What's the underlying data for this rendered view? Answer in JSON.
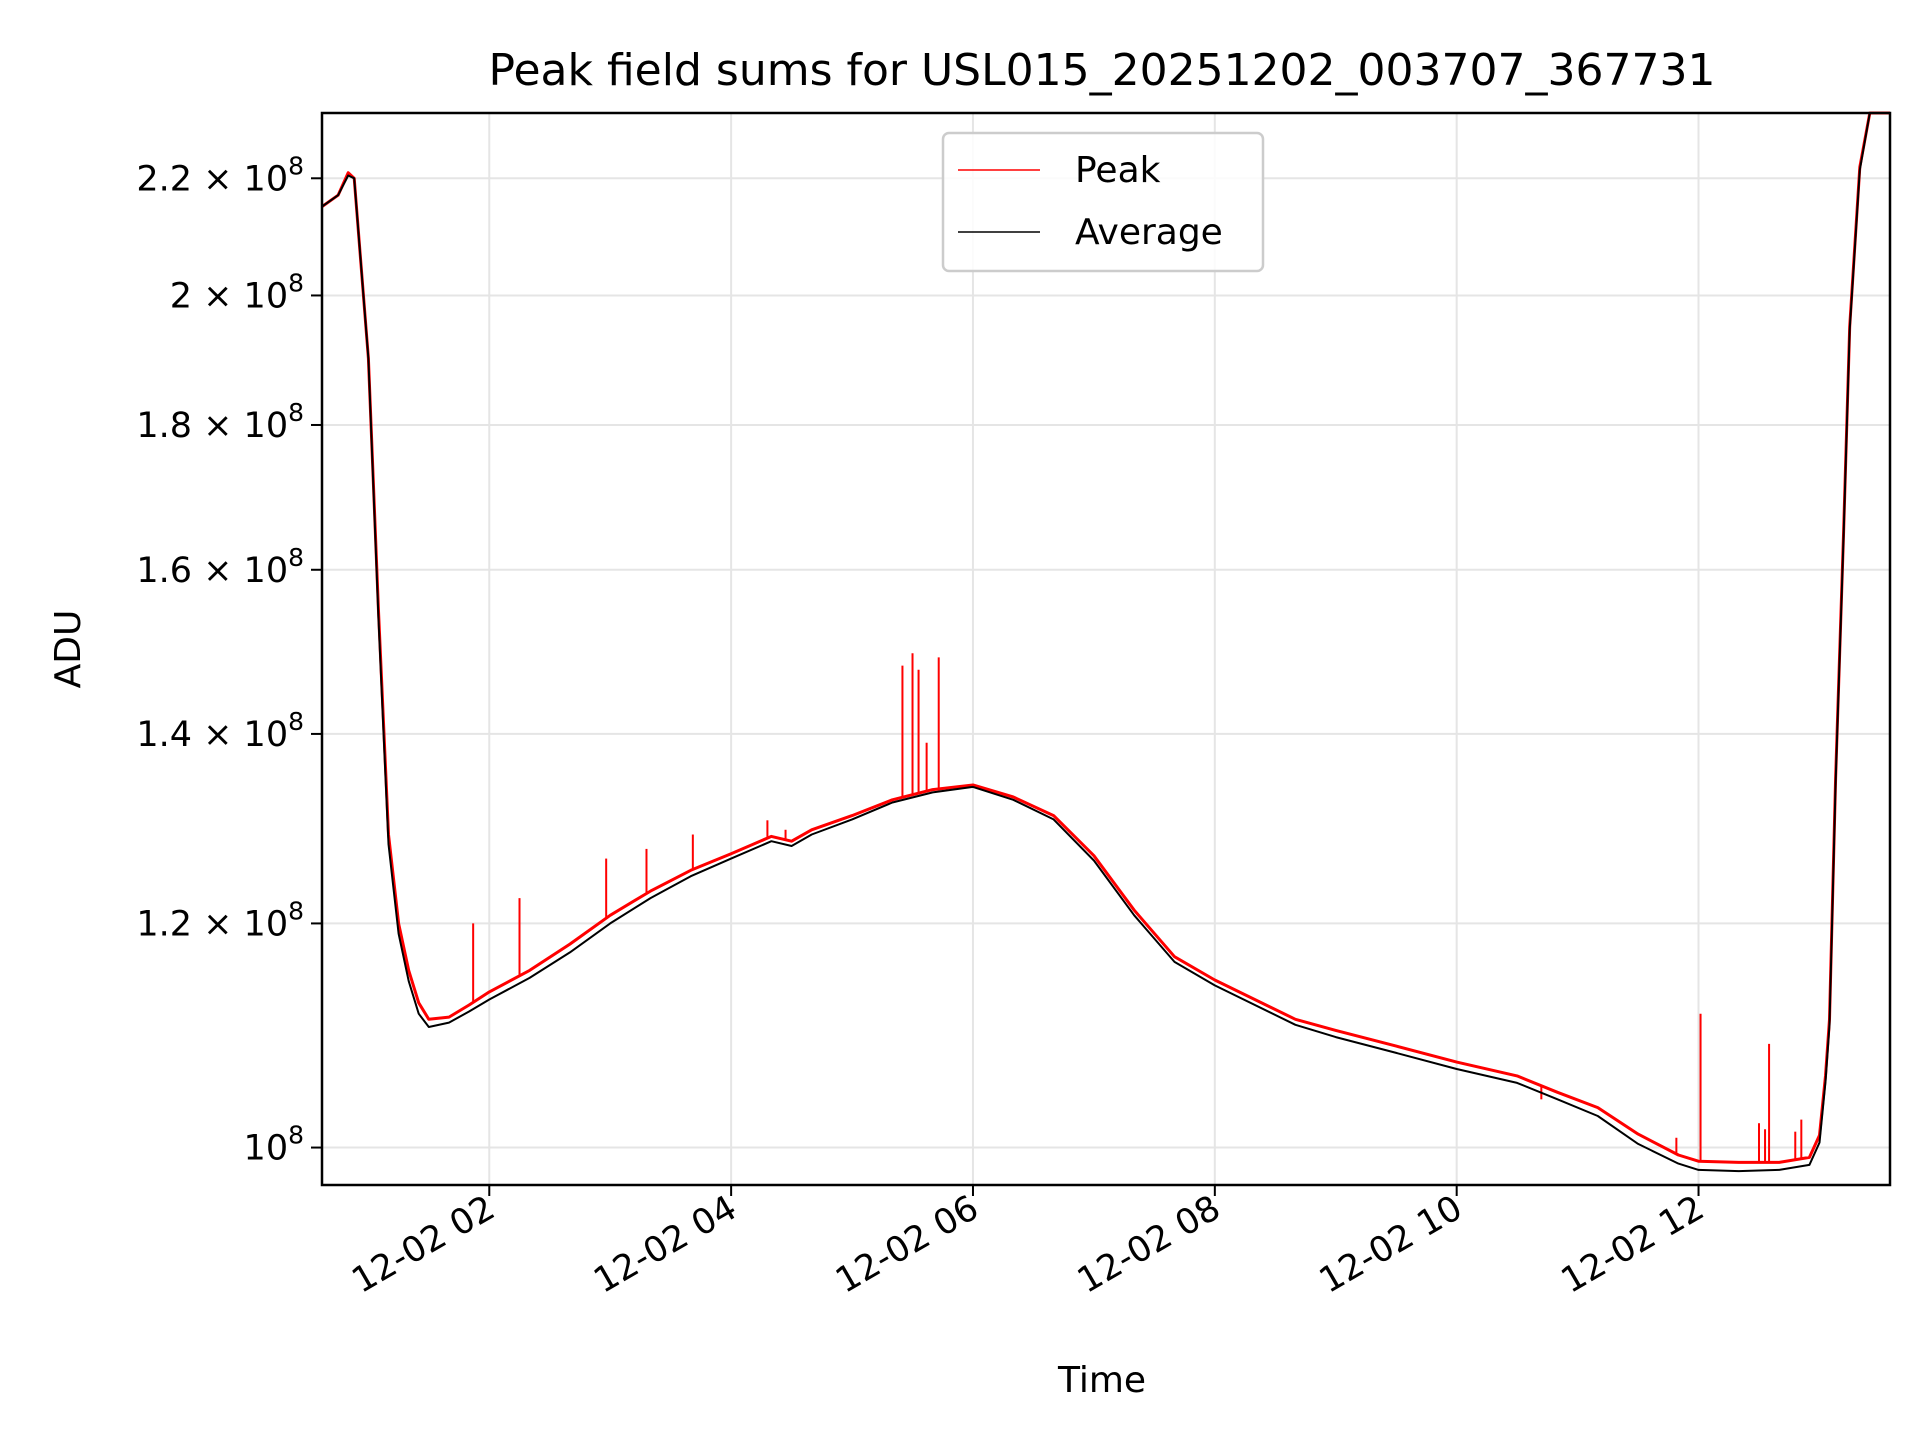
{
  "chart_data": {
    "type": "line",
    "title": "Peak field sums for USL015_20251202_003707_367731",
    "xlabel": "Time",
    "ylabel": "ADU",
    "y_scale": "log",
    "grid": true,
    "legend_position": "upper center",
    "xlim": [
      "2025-12-02 00:37",
      "2025-12-02 13:35"
    ],
    "ylim": [
      97000000,
      232000000
    ],
    "x_ticks": [
      {
        "value": "2025-12-02 02:00",
        "label": "12-02 02"
      },
      {
        "value": "2025-12-02 04:00",
        "label": "12-02 04"
      },
      {
        "value": "2025-12-02 06:00",
        "label": "12-02 06"
      },
      {
        "value": "2025-12-02 08:00",
        "label": "12-02 08"
      },
      {
        "value": "2025-12-02 10:00",
        "label": "12-02 10"
      },
      {
        "value": "2025-12-02 12:00",
        "label": "12-02 12"
      }
    ],
    "y_ticks": [
      {
        "value": 100000000,
        "mantissa": "",
        "times": "",
        "base": "10",
        "exp": "8"
      },
      {
        "value": 120000000,
        "mantissa": "1.2",
        "times": "×",
        "base": "10",
        "exp": "8"
      },
      {
        "value": 140000000,
        "mantissa": "1.4",
        "times": "×",
        "base": "10",
        "exp": "8"
      },
      {
        "value": 160000000,
        "mantissa": "1.6",
        "times": "×",
        "base": "10",
        "exp": "8"
      },
      {
        "value": 180000000,
        "mantissa": "1.8",
        "times": "×",
        "base": "10",
        "exp": "8"
      },
      {
        "value": 200000000,
        "mantissa": "2",
        "times": "×",
        "base": "10",
        "exp": "8"
      },
      {
        "value": 220000000,
        "mantissa": "2.2",
        "times": "×",
        "base": "10",
        "exp": "8"
      }
    ],
    "series": [
      {
        "name": "Peak",
        "color": "#ff0000",
        "x": [
          "2025-12-02 00:37",
          "2025-12-02 00:45",
          "2025-12-02 00:50",
          "2025-12-02 00:53",
          "2025-12-02 01:00",
          "2025-12-02 01:05",
          "2025-12-02 01:10",
          "2025-12-02 01:15",
          "2025-12-02 01:20",
          "2025-12-02 01:25",
          "2025-12-02 01:30",
          "2025-12-02 01:40",
          "2025-12-02 01:50",
          "2025-12-02 02:00",
          "2025-12-02 02:20",
          "2025-12-02 02:40",
          "2025-12-02 03:00",
          "2025-12-02 03:20",
          "2025-12-02 03:40",
          "2025-12-02 04:00",
          "2025-12-02 04:20",
          "2025-12-02 04:30",
          "2025-12-02 04:40",
          "2025-12-02 05:00",
          "2025-12-02 05:20",
          "2025-12-02 05:40",
          "2025-12-02 06:00",
          "2025-12-02 06:20",
          "2025-12-02 06:40",
          "2025-12-02 07:00",
          "2025-12-02 07:20",
          "2025-12-02 07:40",
          "2025-12-02 08:00",
          "2025-12-02 08:40",
          "2025-12-02 09:00",
          "2025-12-02 09:30",
          "2025-12-02 10:00",
          "2025-12-02 10:30",
          "2025-12-02 10:50",
          "2025-12-02 11:10",
          "2025-12-02 11:30",
          "2025-12-02 11:50",
          "2025-12-02 12:00",
          "2025-12-02 12:20",
          "2025-12-02 12:40",
          "2025-12-02 12:55",
          "2025-12-02 13:00",
          "2025-12-02 13:03",
          "2025-12-02 13:05",
          "2025-12-02 13:08",
          "2025-12-02 13:12",
          "2025-12-02 13:15",
          "2025-12-02 13:20",
          "2025-12-02 13:25",
          "2025-12-02 13:35"
        ],
        "y": [
          215000000,
          217000000,
          221000000,
          220000000,
          190000000,
          155000000,
          129000000,
          120000000,
          115500000,
          112500000,
          111000000,
          111200000,
          112300000,
          113500000,
          115500000,
          118000000,
          120800000,
          123200000,
          125300000,
          127000000,
          128800000,
          128300000,
          129500000,
          131000000,
          132700000,
          133800000,
          134300000,
          133000000,
          131000000,
          126800000,
          121300000,
          116800000,
          114600000,
          111000000,
          110000000,
          108600000,
          107200000,
          106000000,
          104600000,
          103300000,
          101100000,
          99400000,
          98900000,
          98800000,
          98800000,
          99200000,
          101000000,
          106000000,
          111000000,
          135000000,
          165000000,
          195000000,
          222000000,
          232000000,
          232000000
        ],
        "spikes": [
          {
            "x": "2025-12-02 01:52",
            "y": 120000000
          },
          {
            "x": "2025-12-02 02:15",
            "y": 122500000
          },
          {
            "x": "2025-12-02 02:58",
            "y": 126500000
          },
          {
            "x": "2025-12-02 03:18",
            "y": 127500000
          },
          {
            "x": "2025-12-02 03:41",
            "y": 129000000
          },
          {
            "x": "2025-12-02 04:18",
            "y": 130500000
          },
          {
            "x": "2025-12-02 04:27",
            "y": 129500000
          },
          {
            "x": "2025-12-02 05:25",
            "y": 148000000
          },
          {
            "x": "2025-12-02 05:30",
            "y": 149500000
          },
          {
            "x": "2025-12-02 05:33",
            "y": 147500000
          },
          {
            "x": "2025-12-02 05:37",
            "y": 139000000
          },
          {
            "x": "2025-12-02 05:43",
            "y": 149000000
          },
          {
            "x": "2025-12-02 10:42",
            "y": 104000000
          },
          {
            "x": "2025-12-02 11:49",
            "y": 100800000
          },
          {
            "x": "2025-12-02 12:01",
            "y": 111500000
          },
          {
            "x": "2025-12-02 12:30",
            "y": 102000000
          },
          {
            "x": "2025-12-02 12:33",
            "y": 101500000
          },
          {
            "x": "2025-12-02 12:35",
            "y": 108800000
          },
          {
            "x": "2025-12-02 12:48",
            "y": 101300000
          },
          {
            "x": "2025-12-02 12:51",
            "y": 102300000
          }
        ]
      },
      {
        "name": "Average",
        "color": "#000000",
        "x": [
          "2025-12-02 00:37",
          "2025-12-02 00:45",
          "2025-12-02 00:50",
          "2025-12-02 00:53",
          "2025-12-02 01:00",
          "2025-12-02 01:05",
          "2025-12-02 01:10",
          "2025-12-02 01:15",
          "2025-12-02 01:20",
          "2025-12-02 01:25",
          "2025-12-02 01:30",
          "2025-12-02 01:40",
          "2025-12-02 01:50",
          "2025-12-02 02:00",
          "2025-12-02 02:20",
          "2025-12-02 02:40",
          "2025-12-02 03:00",
          "2025-12-02 03:20",
          "2025-12-02 03:40",
          "2025-12-02 04:00",
          "2025-12-02 04:20",
          "2025-12-02 04:30",
          "2025-12-02 04:40",
          "2025-12-02 05:00",
          "2025-12-02 05:20",
          "2025-12-02 05:40",
          "2025-12-02 06:00",
          "2025-12-02 06:20",
          "2025-12-02 06:40",
          "2025-12-02 07:00",
          "2025-12-02 07:20",
          "2025-12-02 07:40",
          "2025-12-02 08:00",
          "2025-12-02 08:40",
          "2025-12-02 09:00",
          "2025-12-02 09:30",
          "2025-12-02 10:00",
          "2025-12-02 10:30",
          "2025-12-02 10:50",
          "2025-12-02 11:10",
          "2025-12-02 11:30",
          "2025-12-02 11:50",
          "2025-12-02 12:00",
          "2025-12-02 12:20",
          "2025-12-02 12:40",
          "2025-12-02 12:55",
          "2025-12-02 13:00",
          "2025-12-02 13:03",
          "2025-12-02 13:05",
          "2025-12-02 13:08",
          "2025-12-02 13:12",
          "2025-12-02 13:15",
          "2025-12-02 13:20",
          "2025-12-02 13:25",
          "2025-12-02 13:35"
        ],
        "y": [
          215000000,
          217000000,
          220500000,
          220000000,
          190000000,
          154000000,
          128000000,
          119000000,
          114500000,
          111500000,
          110300000,
          110700000,
          111700000,
          112800000,
          114800000,
          117200000,
          120000000,
          122500000,
          124700000,
          126500000,
          128300000,
          127800000,
          129000000,
          130600000,
          132400000,
          133500000,
          134100000,
          132700000,
          130600000,
          126300000,
          120800000,
          116300000,
          114100000,
          110500000,
          109400000,
          108000000,
          106600000,
          105400000,
          104000000,
          102600000,
          100300000,
          98700000,
          98200000,
          98100000,
          98200000,
          98600000,
          100400000,
          105500000,
          110500000,
          134500000,
          164500000,
          194500000,
          221500000,
          232000000,
          232000000
        ]
      }
    ]
  }
}
